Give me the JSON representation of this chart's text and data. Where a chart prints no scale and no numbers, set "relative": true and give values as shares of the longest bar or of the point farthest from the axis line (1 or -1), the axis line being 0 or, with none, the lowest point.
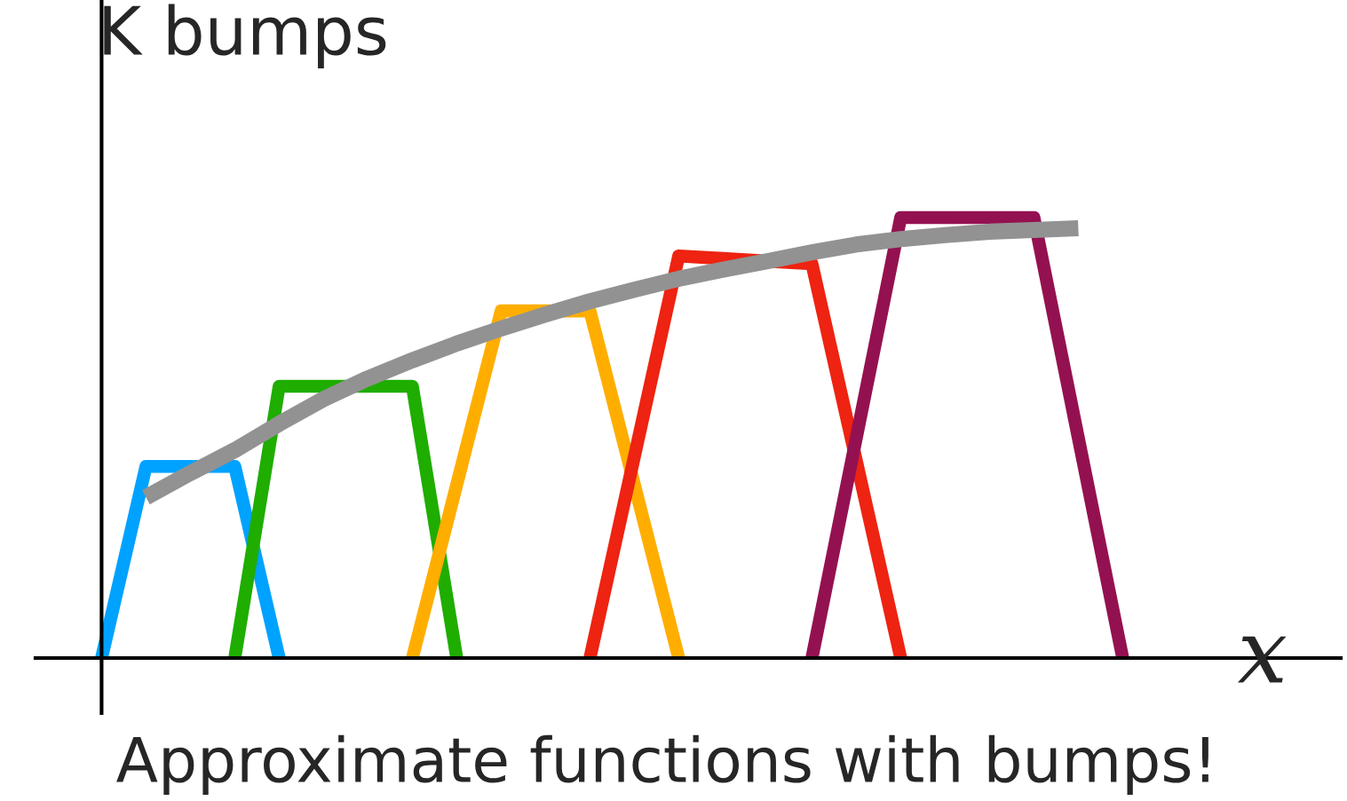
{
  "chart_data": {
    "type": "line",
    "title": "K bumps",
    "xlabel": "x",
    "relative": true,
    "legend": false,
    "marker": "none",
    "line_style": "solid",
    "annotations": [
      "Approximate functions with bumps!"
    ],
    "categories": [
      null,
      null,
      null,
      null,
      null,
      null,
      null,
      null,
      null,
      null,
      null,
      null,
      null,
      null,
      null,
      null,
      null,
      null,
      null,
      null,
      null,
      null,
      null,
      null
    ],
    "series": [
      {
        "color": "#00a2ff",
        "values": [
          0,
          0.435,
          0.435,
          0.435,
          0,
          null,
          null,
          null,
          null,
          null,
          null,
          null,
          null,
          null,
          null,
          null,
          null,
          null,
          null,
          null,
          null,
          null,
          null,
          null
        ]
      },
      {
        "color": "#1fad00",
        "values": [
          null,
          null,
          null,
          0,
          0.617,
          0.617,
          0.617,
          0.617,
          0,
          null,
          null,
          null,
          null,
          null,
          null,
          null,
          null,
          null,
          null,
          null,
          null,
          null,
          null,
          null
        ]
      },
      {
        "color": "#ffae00",
        "values": [
          null,
          null,
          null,
          null,
          null,
          null,
          null,
          0,
          0.394,
          0.788,
          0.788,
          0.788,
          0.394,
          0,
          null,
          null,
          null,
          null,
          null,
          null,
          null,
          null,
          null,
          null
        ]
      },
      {
        "color": "#ee2311",
        "values": [
          null,
          null,
          null,
          null,
          null,
          null,
          null,
          null,
          null,
          null,
          null,
          0,
          0.457,
          0.913,
          0.907,
          0.901,
          0.895,
          0.448,
          0,
          null,
          null,
          null,
          null,
          null
        ]
      },
      {
        "color": "#941151",
        "values": [
          null,
          null,
          null,
          null,
          null,
          null,
          null,
          null,
          null,
          null,
          null,
          null,
          null,
          null,
          null,
          null,
          0,
          0.5,
          1,
          1,
          1,
          1,
          0.5,
          0
        ]
      },
      {
        "color": "#929292",
        "values": [
          null,
          0.365,
          0.42,
          0.472,
          0.532,
          0.588,
          0.635,
          0.676,
          0.714,
          0.748,
          0.78,
          0.81,
          0.836,
          0.861,
          0.882,
          0.901,
          0.921,
          0.939,
          0.951,
          0.96,
          0.968,
          0.972,
          0.976,
          null
        ]
      }
    ]
  }
}
